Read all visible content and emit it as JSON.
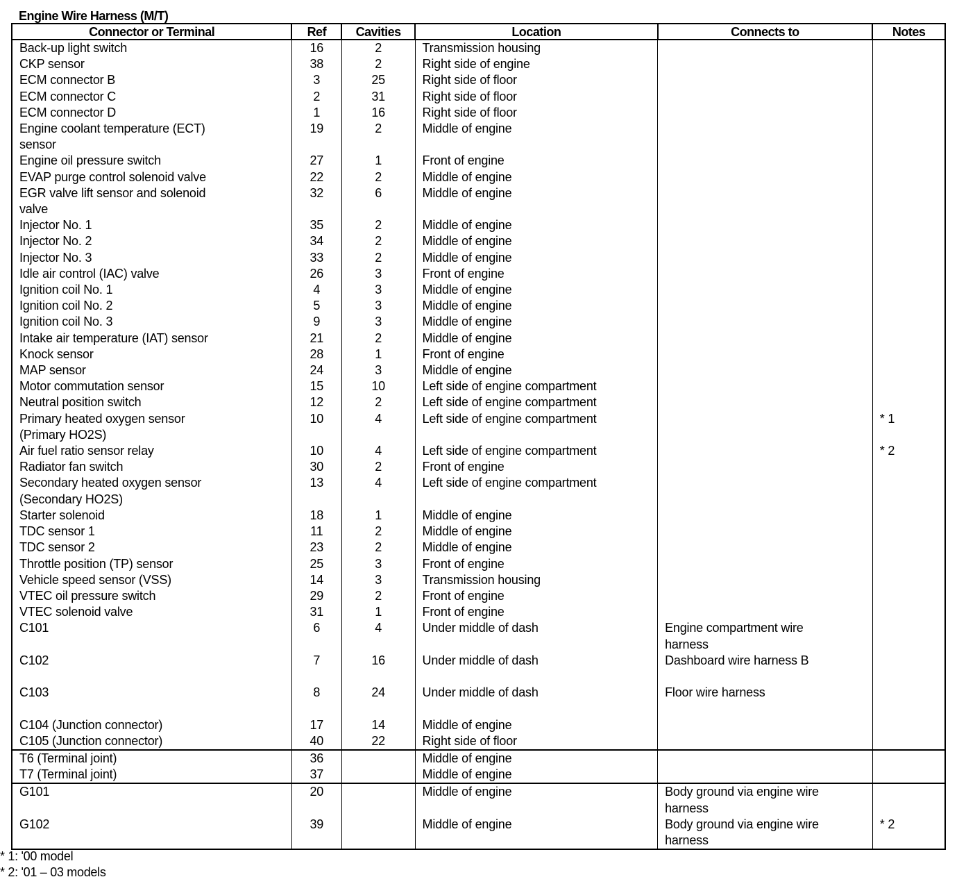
{
  "title": "Engine Wire Harness (M/T)",
  "columns": [
    "Connector or Terminal",
    "Ref",
    "Cavities",
    "Location",
    "Connects to",
    "Notes"
  ],
  "groups": [
    [
      {
        "name": [
          "Back-up light switch"
        ],
        "ref": "16",
        "cav": "2",
        "loc": "Transmission housing",
        "to": [],
        "note": ""
      },
      {
        "name": [
          "CKP sensor"
        ],
        "ref": "38",
        "cav": "2",
        "loc": "Right side of engine",
        "to": [],
        "note": ""
      },
      {
        "name": [
          "ECM connector B"
        ],
        "ref": "3",
        "cav": "25",
        "loc": "Right side of floor",
        "to": [],
        "note": ""
      },
      {
        "name": [
          "ECM connector C"
        ],
        "ref": "2",
        "cav": "31",
        "loc": "Right side of floor",
        "to": [],
        "note": ""
      },
      {
        "name": [
          "ECM connector D"
        ],
        "ref": "1",
        "cav": "16",
        "loc": "Right side of floor",
        "to": [],
        "note": ""
      },
      {
        "name": [
          "Engine coolant temperature (ECT)",
          "sensor"
        ],
        "ref": "19",
        "cav": "2",
        "loc": "Middle of engine",
        "to": [],
        "note": ""
      },
      {
        "name": [
          "Engine oil pressure switch"
        ],
        "ref": "27",
        "cav": "1",
        "loc": "Front of engine",
        "to": [],
        "note": ""
      },
      {
        "name": [
          "EVAP purge control solenoid valve"
        ],
        "ref": "22",
        "cav": "2",
        "loc": "Middle of engine",
        "to": [],
        "note": ""
      },
      {
        "name": [
          "EGR valve lift sensor and solenoid",
          "valve"
        ],
        "ref": "32",
        "cav": "6",
        "loc": "Middle of engine",
        "to": [],
        "note": ""
      },
      {
        "name": [
          "Injector No. 1"
        ],
        "ref": "35",
        "cav": "2",
        "loc": "Middle of engine",
        "to": [],
        "note": ""
      },
      {
        "name": [
          "Injector No. 2"
        ],
        "ref": "34",
        "cav": "2",
        "loc": "Middle of engine",
        "to": [],
        "note": ""
      },
      {
        "name": [
          "Injector No. 3"
        ],
        "ref": "33",
        "cav": "2",
        "loc": "Middle of engine",
        "to": [],
        "note": ""
      },
      {
        "name": [
          "Idle air control (IAC) valve"
        ],
        "ref": "26",
        "cav": "3",
        "loc": "Front of engine",
        "to": [],
        "note": ""
      },
      {
        "name": [
          "Ignition coil No. 1"
        ],
        "ref": "4",
        "cav": "3",
        "loc": "Middle of engine",
        "to": [],
        "note": ""
      },
      {
        "name": [
          "Ignition coil No. 2"
        ],
        "ref": "5",
        "cav": "3",
        "loc": "Middle of engine",
        "to": [],
        "note": ""
      },
      {
        "name": [
          "Ignition coil No. 3"
        ],
        "ref": "9",
        "cav": "3",
        "loc": "Middle of engine",
        "to": [],
        "note": ""
      },
      {
        "name": [
          "Intake air temperature (IAT) sensor"
        ],
        "ref": "21",
        "cav": "2",
        "loc": "Middle of engine",
        "to": [],
        "note": ""
      },
      {
        "name": [
          "Knock sensor"
        ],
        "ref": "28",
        "cav": "1",
        "loc": "Front of engine",
        "to": [],
        "note": ""
      },
      {
        "name": [
          "MAP sensor"
        ],
        "ref": "24",
        "cav": "3",
        "loc": "Middle of engine",
        "to": [],
        "note": ""
      },
      {
        "name": [
          "Motor commutation sensor"
        ],
        "ref": "15",
        "cav": "10",
        "loc": "Left side of engine compartment",
        "to": [],
        "note": ""
      },
      {
        "name": [
          "Neutral position switch"
        ],
        "ref": "12",
        "cav": "2",
        "loc": "Left side of engine compartment",
        "to": [],
        "note": ""
      },
      {
        "name": [
          "Primary heated oxygen sensor",
          "(Primary HO2S)"
        ],
        "ref": "10",
        "cav": "4",
        "loc": "Left side of engine compartment",
        "to": [],
        "note": "* 1"
      },
      {
        "name": [
          "Air fuel ratio sensor relay"
        ],
        "ref": "10",
        "cav": "4",
        "loc": "Left side of engine compartment",
        "to": [],
        "note": "* 2"
      },
      {
        "name": [
          "Radiator fan switch"
        ],
        "ref": "30",
        "cav": "2",
        "loc": "Front of engine",
        "to": [],
        "note": ""
      },
      {
        "name": [
          "Secondary heated oxygen sensor",
          "(Secondary HO2S)"
        ],
        "ref": "13",
        "cav": "4",
        "loc": "Left side of engine compartment",
        "to": [],
        "note": ""
      },
      {
        "name": [
          "Starter solenoid"
        ],
        "ref": "18",
        "cav": "1",
        "loc": "Middle of engine",
        "to": [],
        "note": ""
      },
      {
        "name": [
          "TDC sensor 1"
        ],
        "ref": "11",
        "cav": "2",
        "loc": "Middle of engine",
        "to": [],
        "note": ""
      },
      {
        "name": [
          "TDC sensor 2"
        ],
        "ref": "23",
        "cav": "2",
        "loc": "Middle of engine",
        "to": [],
        "note": ""
      },
      {
        "name": [
          "Throttle position (TP) sensor"
        ],
        "ref": "25",
        "cav": "3",
        "loc": "Front of engine",
        "to": [],
        "note": ""
      },
      {
        "name": [
          "Vehicle speed sensor (VSS)"
        ],
        "ref": "14",
        "cav": "3",
        "loc": "Transmission housing",
        "to": [],
        "note": ""
      },
      {
        "name": [
          "VTEC oil pressure switch"
        ],
        "ref": "29",
        "cav": "2",
        "loc": "Front of engine",
        "to": [],
        "note": ""
      },
      {
        "name": [
          "VTEC solenoid valve"
        ],
        "ref": "31",
        "cav": "1",
        "loc": "Front of engine",
        "to": [],
        "note": ""
      },
      {
        "name": [
          "C101"
        ],
        "ref": "6",
        "cav": "4",
        "loc": "Under middle of dash",
        "to": [
          "Engine compartment wire",
          "harness"
        ],
        "note": ""
      },
      {
        "name": [
          "C102"
        ],
        "ref": "7",
        "cav": "16",
        "loc": "Under middle of dash",
        "to": [
          "Dashboard wire harness B",
          ""
        ],
        "note": ""
      },
      {
        "name": [
          "C103"
        ],
        "ref": "8",
        "cav": "24",
        "loc": "Under middle of dash",
        "to": [
          "Floor wire harness",
          ""
        ],
        "note": ""
      },
      {
        "name": [
          "C104 (Junction connector)"
        ],
        "ref": "17",
        "cav": "14",
        "loc": "Middle of engine",
        "to": [],
        "note": ""
      },
      {
        "name": [
          "C105 (Junction connector)"
        ],
        "ref": "40",
        "cav": "22",
        "loc": "Right side of floor",
        "to": [],
        "note": ""
      }
    ],
    [
      {
        "name": [
          "T6 (Terminal joint)"
        ],
        "ref": "36",
        "cav": "",
        "loc": "Middle of engine",
        "to": [],
        "note": ""
      },
      {
        "name": [
          "T7 (Terminal joint)"
        ],
        "ref": "37",
        "cav": "",
        "loc": "Middle of engine",
        "to": [],
        "note": ""
      }
    ],
    [
      {
        "name": [
          "G101"
        ],
        "ref": "20",
        "cav": "",
        "loc": "Middle of engine",
        "to": [
          "Body ground via engine wire",
          "harness"
        ],
        "note": ""
      },
      {
        "name": [
          "G102"
        ],
        "ref": "39",
        "cav": "",
        "loc": "Middle of engine",
        "to": [
          "Body ground via engine wire",
          "harness"
        ],
        "note": "* 2"
      }
    ]
  ],
  "footnotes": [
    "* 1: '00 model",
    "* 2: '01 – 03 models"
  ]
}
